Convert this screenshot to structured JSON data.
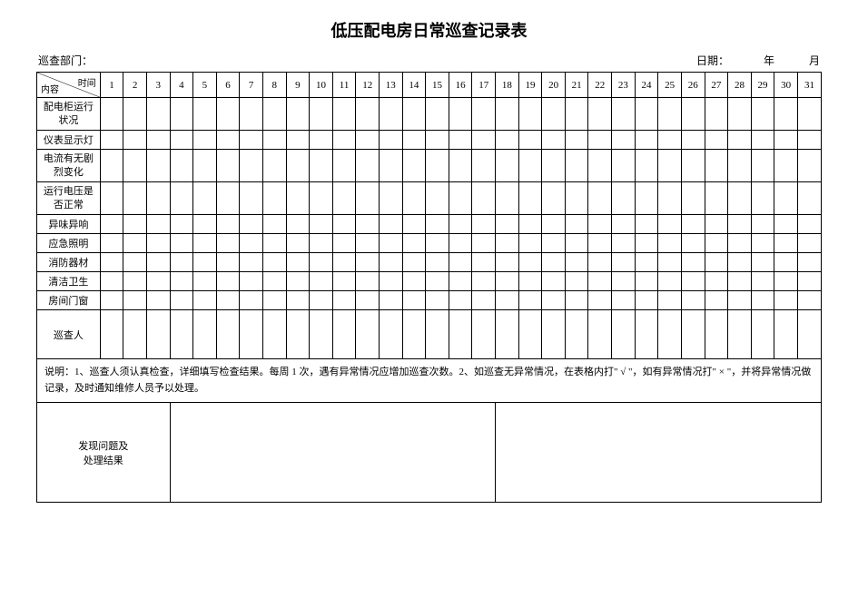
{
  "title": "低压配电房日常巡查记录表",
  "header": {
    "dept_label": "巡查部门：",
    "date_label": "日期：",
    "year_unit": "年",
    "month_unit": "月"
  },
  "corner": {
    "content_label": "内容",
    "time_label": "时间"
  },
  "days": [
    "1",
    "2",
    "3",
    "4",
    "5",
    "6",
    "7",
    "8",
    "9",
    "10",
    "11",
    "12",
    "13",
    "14",
    "15",
    "16",
    "17",
    "18",
    "19",
    "20",
    "21",
    "22",
    "23",
    "24",
    "25",
    "26",
    "27",
    "28",
    "29",
    "30",
    "31"
  ],
  "rows": [
    {
      "label": "配电柜运行\n状况",
      "height": "two"
    },
    {
      "label": "仪表显示灯",
      "height": "one"
    },
    {
      "label": "电流有无剧\n烈变化",
      "height": "two"
    },
    {
      "label": "运行电压是\n否正常",
      "height": "two"
    },
    {
      "label": "异味异响",
      "height": "one"
    },
    {
      "label": "应急照明",
      "height": "one"
    },
    {
      "label": "消防器材",
      "height": "one"
    },
    {
      "label": "清洁卫生",
      "height": "one"
    },
    {
      "label": "房间门窗",
      "height": "one"
    }
  ],
  "inspector_label": "巡查人",
  "notes": "说明：1、巡查人须认真检查，详细填写检查结果。每周 1 次，遇有异常情况应增加巡查次数。2、如巡查无异常情况，在表格内打\" √ \"，如有异常情况打\" × \"，并将异常情况做记录，及时通知维修人员予以处理。",
  "results_label": "发现问题及\n处理结果"
}
